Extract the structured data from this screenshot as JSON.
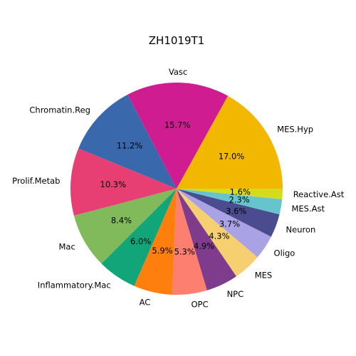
{
  "chart_data": {
    "type": "pie",
    "title": "ZH1019T1",
    "slices": [
      {
        "label": "MES.Hyp",
        "value": 17.0,
        "pct_text": "17.0%",
        "color": "#f2b701"
      },
      {
        "label": "Vasc",
        "value": 15.7,
        "pct_text": "15.7%",
        "color": "#cf1c90"
      },
      {
        "label": "Chromatin.Reg",
        "value": 11.2,
        "pct_text": "11.2%",
        "color": "#3969ac"
      },
      {
        "label": "Prolif.Metab",
        "value": 10.3,
        "pct_text": "10.3%",
        "color": "#e73f74"
      },
      {
        "label": "Mac",
        "value": 8.4,
        "pct_text": "8.4%",
        "color": "#80ba5a"
      },
      {
        "label": "Inflammatory.Mac",
        "value": 6.0,
        "pct_text": "6.0%",
        "color": "#11a579"
      },
      {
        "label": "AC",
        "value": 5.9,
        "pct_text": "5.9%",
        "color": "#ff7f0e"
      },
      {
        "label": "OPC",
        "value": 5.3,
        "pct_text": "5.3%",
        "color": "#fd7f6f"
      },
      {
        "label": "NPC",
        "value": 4.9,
        "pct_text": "4.9%",
        "color": "#7f3c8d"
      },
      {
        "label": "MES",
        "value": 4.3,
        "pct_text": "4.3%",
        "color": "#f6cf71"
      },
      {
        "label": "Oligo",
        "value": 3.7,
        "pct_text": "3.7%",
        "color": "#a9a2e4"
      },
      {
        "label": "Neuron",
        "value": 3.6,
        "pct_text": "3.6%",
        "color": "#4b4b8f"
      },
      {
        "label": "MES.Ast",
        "value": 2.3,
        "pct_text": "2.3%",
        "color": "#66c5cc"
      },
      {
        "label": "Reactive.Ast",
        "value": 1.6,
        "pct_text": "1.6%",
        "color": "#d4dc1c"
      }
    ]
  }
}
